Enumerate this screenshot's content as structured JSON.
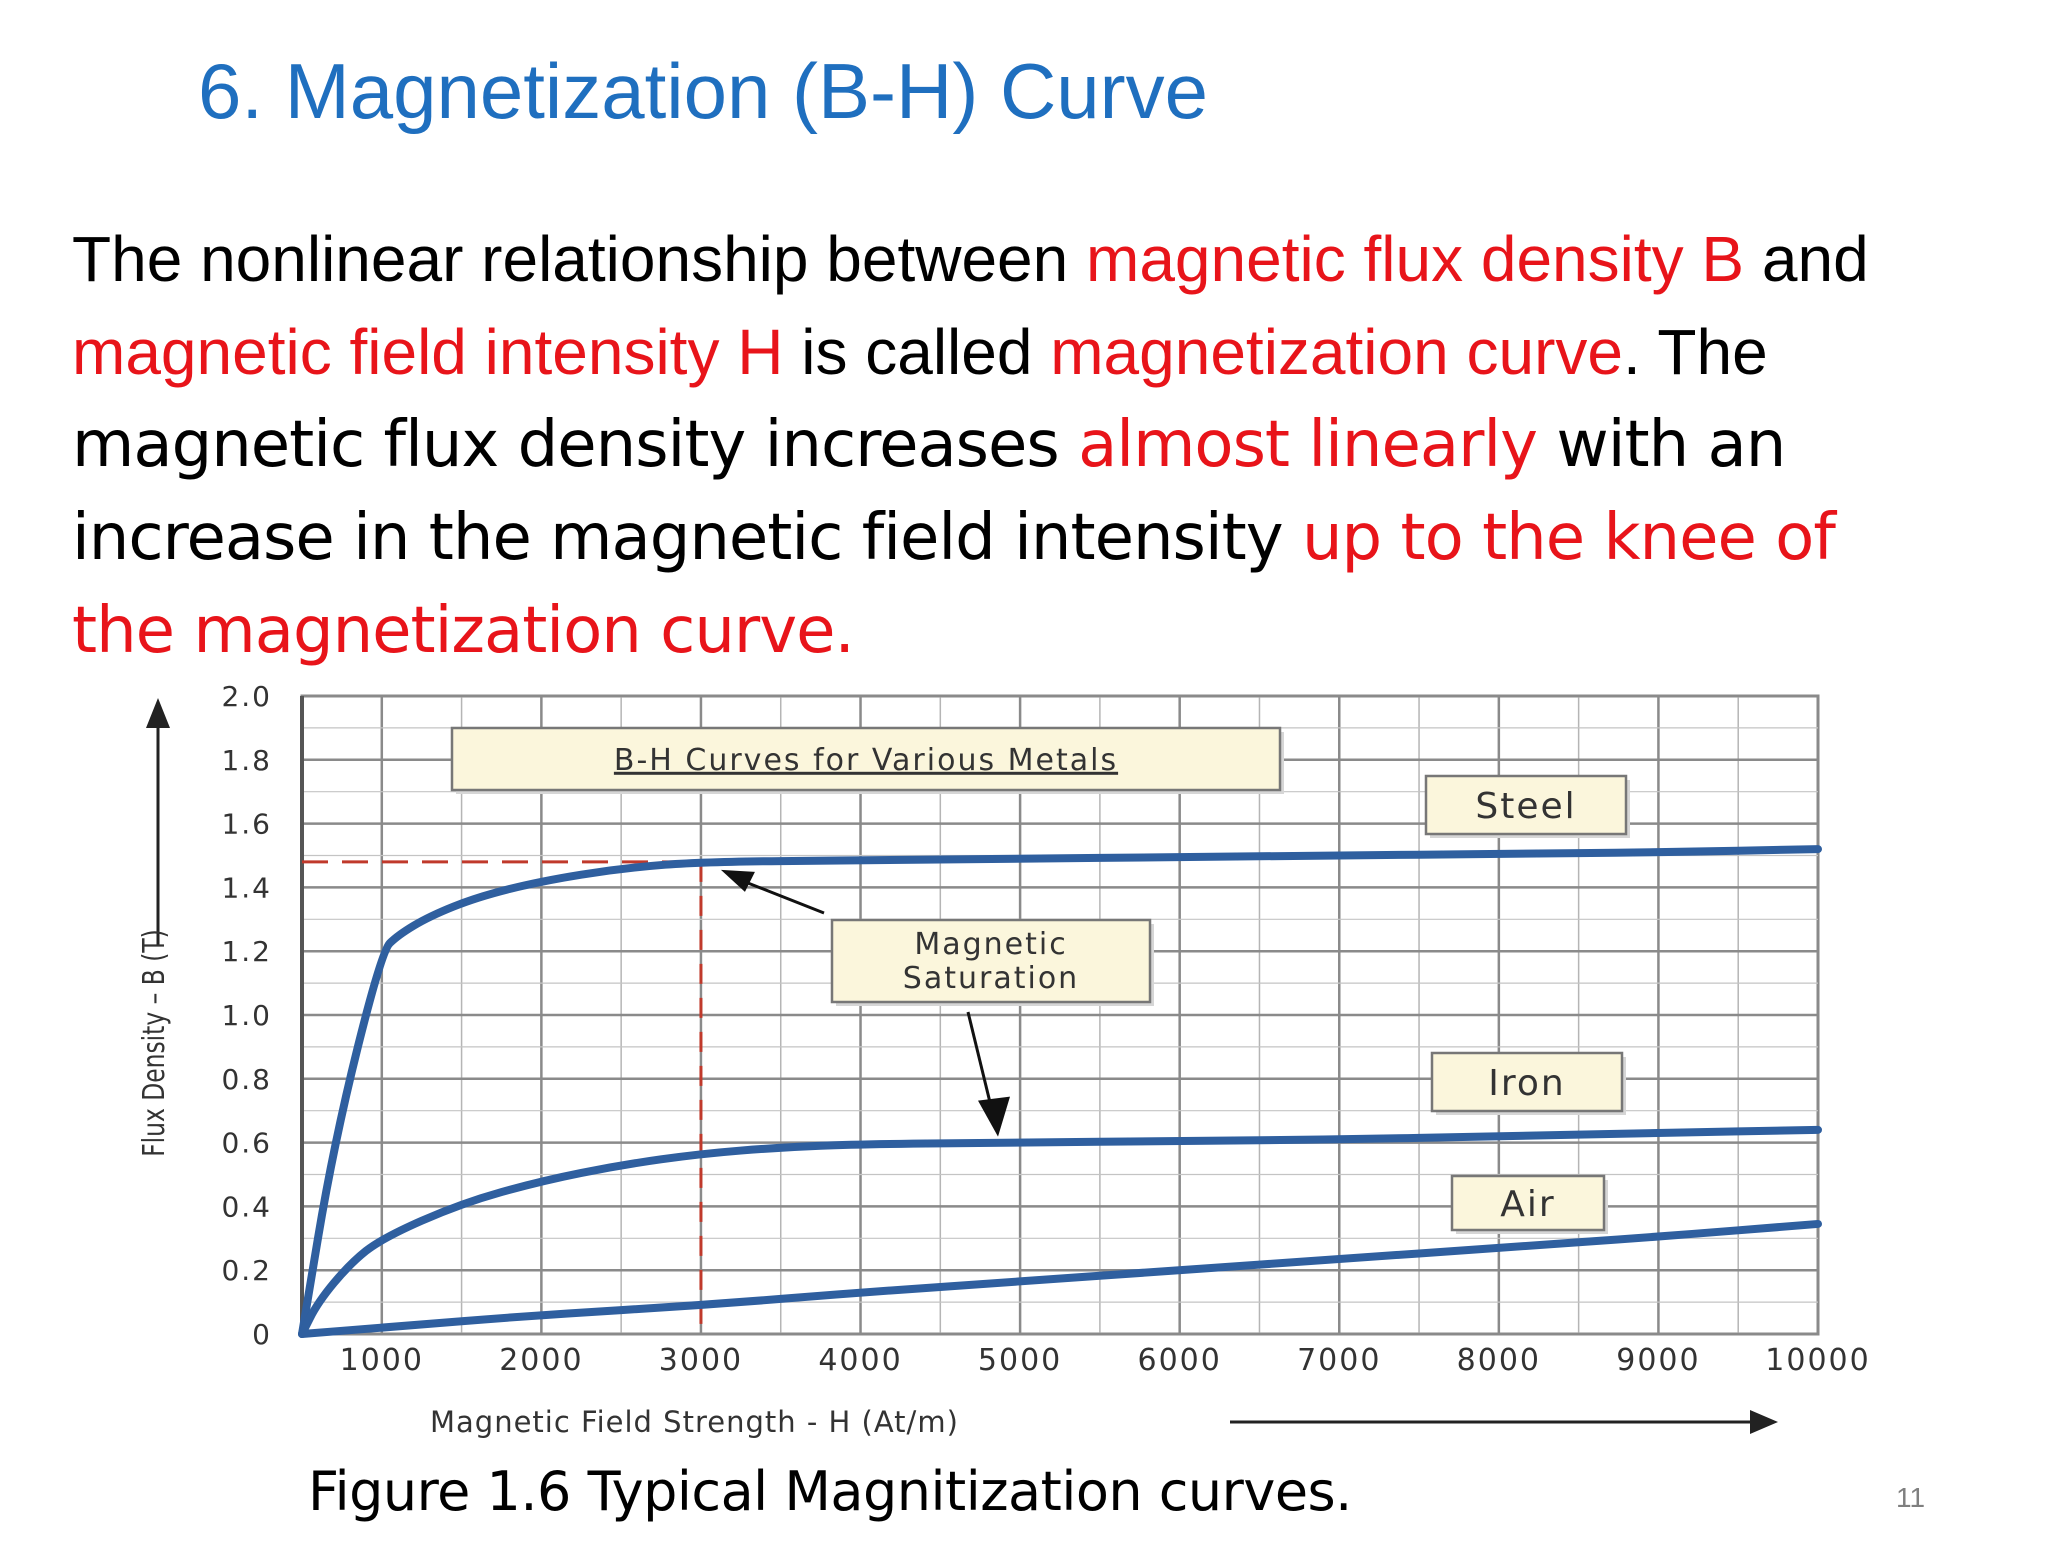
{
  "slide": {
    "title": "6. Magnetization (B-H) Curve",
    "page_number": "11",
    "caption": "Figure 1.6 Typical Magnitization curves."
  },
  "paragraph": {
    "line1": {
      "a": "The nonlinear relationship between ",
      "b": "magnetic flux density B",
      "c": " and"
    },
    "line2": {
      "a": "magnetic field intensity H",
      "b": " is called ",
      "c": "magnetization curve",
      "d": ". The"
    },
    "line3": {
      "a": "magnetic flux density increases ",
      "b": "almost linearly",
      "c": " with an"
    },
    "line4": {
      "a": "increase in the magnetic field intensity ",
      "b": "up to the knee of"
    },
    "line5": {
      "a": "the magnetization curve."
    }
  },
  "colors": {
    "title_blue": "#1f6fbf",
    "highlight_red": "#e8141a",
    "curve_blue": "#2f5f9f",
    "grid_gray": "#8a8a8a",
    "label_box_fill": "#fbf6dc",
    "dash_red": "#c0392b"
  },
  "chart_data": {
    "type": "line",
    "title": "B-H Curves for Various Metals",
    "xlabel": "Magnetic Field Strength -    H (At/m)",
    "ylabel": "Flux Density – B (T)",
    "xlim": [
      500,
      10000
    ],
    "ylim": [
      0,
      2.0
    ],
    "x_ticks": [
      "1000",
      "2000",
      "3000",
      "4000",
      "5000",
      "6000",
      "7000",
      "8000",
      "9000",
      "10000"
    ],
    "x_tick_values": [
      1000,
      2000,
      3000,
      4000,
      5000,
      6000,
      7000,
      8000,
      9000,
      10000
    ],
    "y_ticks": [
      "2.0",
      "1.8",
      "1.6",
      "1.4",
      "1.2",
      "1.0",
      "0.8",
      "0.6",
      "0.4",
      "0.2",
      "0"
    ],
    "y_tick_values": [
      2.0,
      1.8,
      1.6,
      1.4,
      1.2,
      1.0,
      0.8,
      0.6,
      0.4,
      0.2,
      0
    ],
    "grid": true,
    "series": [
      {
        "name": "Steel",
        "x": [
          500,
          700,
          1000,
          1100,
          1300,
          1600,
          2000,
          2500,
          3000,
          4000,
          5000,
          6000,
          7000,
          8000,
          9000,
          10000
        ],
        "y": [
          0.0,
          0.6,
          1.2,
          1.25,
          1.31,
          1.37,
          1.42,
          1.46,
          1.48,
          1.485,
          1.49,
          1.495,
          1.5,
          1.505,
          1.51,
          1.52
        ]
      },
      {
        "name": "Iron",
        "x": [
          500,
          600,
          800,
          1000,
          1500,
          2000,
          2500,
          3000,
          3500,
          4000,
          5000,
          6000,
          7000,
          8000,
          9000,
          10000
        ],
        "y": [
          0.0,
          0.1,
          0.22,
          0.3,
          0.41,
          0.48,
          0.53,
          0.565,
          0.585,
          0.595,
          0.6,
          0.605,
          0.61,
          0.62,
          0.63,
          0.64
        ]
      },
      {
        "name": "Air",
        "x": [
          500,
          1000,
          2000,
          3000,
          4000,
          5000,
          6000,
          7000,
          8000,
          9000,
          10000
        ],
        "y": [
          0.0,
          0.02,
          0.06,
          0.09,
          0.13,
          0.165,
          0.2,
          0.235,
          0.27,
          0.305,
          0.345
        ]
      }
    ],
    "annotations": {
      "saturation_label": "Magnetic Saturation",
      "saturation_line1": "Magnetic",
      "saturation_line2": "Saturation",
      "saturation_point": {
        "x": 3000,
        "y": 1.48
      }
    }
  }
}
